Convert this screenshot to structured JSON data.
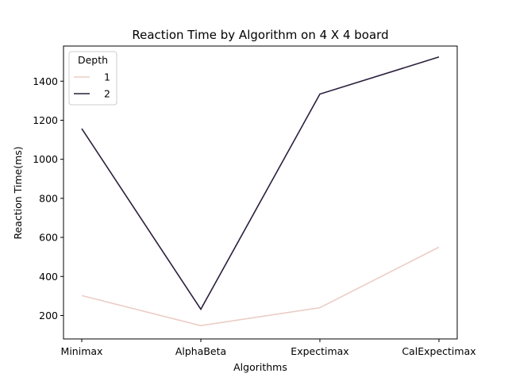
{
  "chart_data": {
    "type": "line",
    "title": "Reaction Time by Algorithm on 4 X 4 board",
    "xlabel": "Algorithms",
    "ylabel": "Reaction Time(ms)",
    "categories": [
      "Minimax",
      "AlphaBeta",
      "Expectimax",
      "CalExpectimax"
    ],
    "ylim": [
      80,
      1580
    ],
    "yticks": [
      200,
      400,
      600,
      800,
      1000,
      1200,
      1400
    ],
    "grid": false,
    "legend": {
      "title": "Depth",
      "placement": "top-left"
    },
    "series": [
      {
        "name": "1",
        "color": "#ebcdc5",
        "values": [
          302,
          148,
          240,
          550
        ]
      },
      {
        "name": "2",
        "color": "#2b1f3d",
        "values": [
          1157,
          232,
          1334,
          1524
        ]
      }
    ]
  }
}
